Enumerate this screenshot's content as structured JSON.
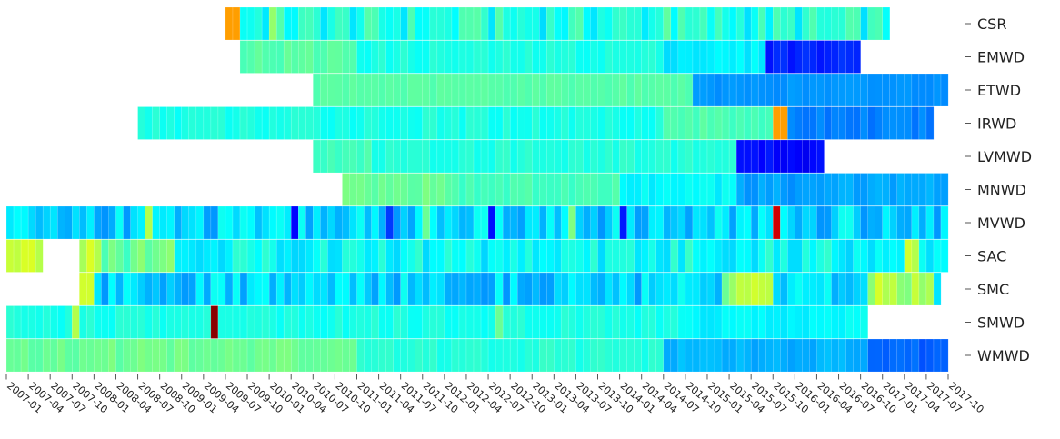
{
  "chart_data": {
    "type": "heatmap",
    "title": "",
    "xlabel": "",
    "ylabel": "",
    "x_tick_labels": [
      "2007-01",
      "2007-04",
      "2007-07",
      "2007-10",
      "2008-01",
      "2008-04",
      "2008-07",
      "2008-10",
      "2009-01",
      "2009-04",
      "2009-07",
      "2009-10",
      "2010-01",
      "2010-04",
      "2010-07",
      "2010-10",
      "2011-01",
      "2011-04",
      "2011-07",
      "2011-10",
      "2012-01",
      "2012-04",
      "2012-07",
      "2012-10",
      "2013-01",
      "2013-04",
      "2013-07",
      "2013-10",
      "2014-01",
      "2014-04",
      "2014-07",
      "2014-10",
      "2015-01",
      "2015-04",
      "2015-07",
      "2015-10",
      "2016-01",
      "2016-04",
      "2016-07",
      "2016-10",
      "2017-01",
      "2017-04",
      "2017-07",
      "2017-10"
    ],
    "x_range": [
      "2007-01",
      "2017-09"
    ],
    "rows": [
      {
        "name": "CSR",
        "start": "2009-07",
        "end": "2017-01",
        "base": 0.4,
        "noise": 0.06,
        "segments": [],
        "spikes": [
          [
            "2009-07",
            0.72
          ],
          [
            "2009-08",
            0.72
          ],
          [
            "2010-01",
            0.52
          ],
          [
            "2012-05",
            0.46
          ],
          [
            "2014-07",
            0.47
          ]
        ]
      },
      {
        "name": "EMWD",
        "start": "2009-09",
        "end": "2016-09",
        "base": 0.42,
        "noise": 0.02,
        "segments": [
          [
            "2009-09",
            "2010-12",
            0.46
          ],
          [
            "2011-01",
            "2014-06",
            0.4
          ],
          [
            "2014-07",
            "2015-08",
            0.36
          ],
          [
            "2015-09",
            "2016-09",
            0.16
          ]
        ],
        "spikes": []
      },
      {
        "name": "ETWD",
        "start": "2010-07",
        "end": "2017-09",
        "base": 0.44,
        "noise": 0.01,
        "segments": [
          [
            "2010-07",
            "2014-10",
            0.46
          ],
          [
            "2014-11",
            "2017-09",
            0.27
          ]
        ],
        "spikes": []
      },
      {
        "name": "IRWD",
        "start": "2008-07",
        "end": "2017-07",
        "base": 0.4,
        "noise": 0.02,
        "segments": [
          [
            "2008-07",
            "2014-06",
            0.4
          ],
          [
            "2014-07",
            "2015-09",
            0.45
          ],
          [
            "2015-12",
            "2017-07",
            0.25
          ]
        ],
        "spikes": [
          [
            "2015-10",
            0.72
          ],
          [
            "2015-11",
            0.72
          ]
        ]
      },
      {
        "name": "LVMWD",
        "start": "2010-07",
        "end": "2016-04",
        "base": 0.41,
        "noise": 0.02,
        "segments": [
          [
            "2010-07",
            "2011-02",
            0.44
          ],
          [
            "2011-03",
            "2015-04",
            0.41
          ],
          [
            "2015-05",
            "2016-04",
            0.13
          ]
        ],
        "spikes": []
      },
      {
        "name": "MNWD",
        "start": "2010-11",
        "end": "2017-09",
        "base": 0.4,
        "noise": 0.02,
        "segments": [
          [
            "2010-11",
            "2012-01",
            0.48
          ],
          [
            "2012-02",
            "2013-12",
            0.44
          ],
          [
            "2014-01",
            "2015-04",
            0.37
          ],
          [
            "2015-05",
            "2016-05",
            0.28
          ],
          [
            "2016-06",
            "2017-09",
            0.29
          ]
        ],
        "spikes": []
      },
      {
        "name": "MVWD",
        "start": "2007-01",
        "end": "2017-09",
        "base": 0.33,
        "noise": 0.06,
        "segments": [],
        "spikes": [
          [
            "2008-08",
            0.55
          ],
          [
            "2010-04",
            0.13
          ],
          [
            "2011-05",
            0.18
          ],
          [
            "2011-10",
            0.48
          ],
          [
            "2012-07",
            0.14
          ],
          [
            "2013-06",
            0.5
          ],
          [
            "2014-01",
            0.15
          ],
          [
            "2015-10",
            0.92
          ]
        ]
      },
      {
        "name": "SAC",
        "start": "2007-01",
        "end": "2017-09",
        "base": 0.38,
        "noise": 0.05,
        "segments": [
          [
            "2007-01",
            "2007-05",
            0.58
          ],
          [
            "2007-11",
            "2008-01",
            0.58
          ],
          [
            "2008-02",
            "2008-11",
            0.48
          ]
        ],
        "gaps": [
          [
            "2007-06",
            "2007-10"
          ]
        ],
        "spikes": [
          [
            "2017-04",
            0.58
          ],
          [
            "2017-05",
            0.55
          ]
        ]
      },
      {
        "name": "SMC",
        "start": "2007-11",
        "end": "2017-08",
        "base": 0.33,
        "noise": 0.06,
        "segments": [
          [
            "2015-03",
            "2015-09",
            0.52
          ],
          [
            "2016-11",
            "2017-07",
            0.55
          ]
        ],
        "spikes": [
          [
            "2007-11",
            0.58
          ],
          [
            "2007-12",
            0.58
          ]
        ]
      },
      {
        "name": "SMWD",
        "start": "2007-01",
        "end": "2016-10",
        "base": 0.4,
        "noise": 0.02,
        "segments": [
          [
            "2014-10",
            "2016-10",
            0.37
          ]
        ],
        "spikes": [
          [
            "2007-10",
            0.55
          ],
          [
            "2009-05",
            0.99
          ],
          [
            "2012-08",
            0.48
          ]
        ]
      },
      {
        "name": "WMWD",
        "start": "2007-01",
        "end": "2017-09",
        "base": 0.44,
        "noise": 0.02,
        "segments": [
          [
            "2007-01",
            "2010-12",
            0.48
          ],
          [
            "2011-01",
            "2014-06",
            0.41
          ],
          [
            "2014-07",
            "2016-10",
            0.3
          ],
          [
            "2016-11",
            "2017-09",
            0.22
          ]
        ],
        "spikes": []
      }
    ]
  }
}
